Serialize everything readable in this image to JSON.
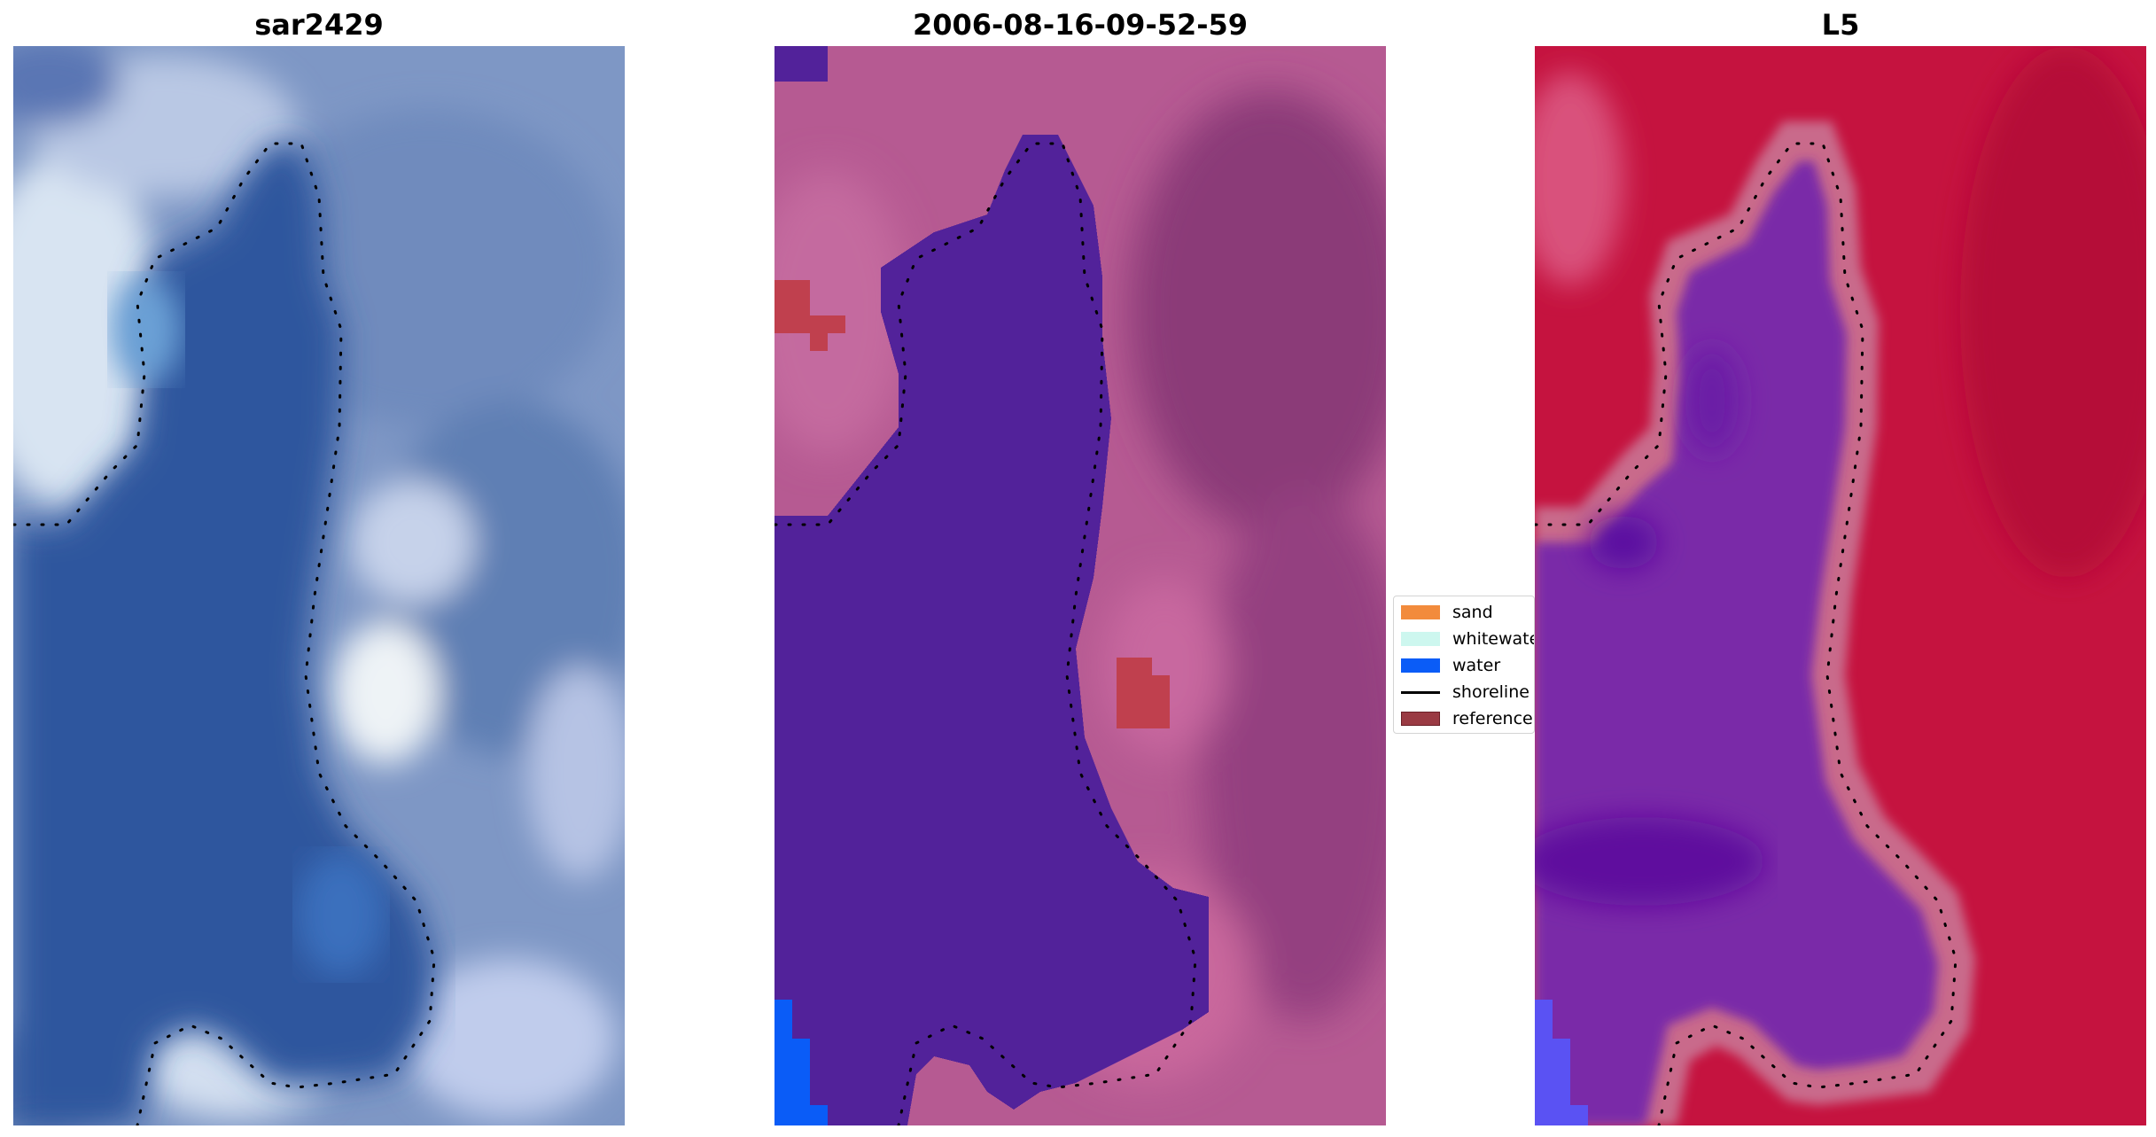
{
  "panels": [
    {
      "title": "sar2429"
    },
    {
      "title": "2006-08-16-09-52-59"
    },
    {
      "title": "L5"
    }
  ],
  "legend": {
    "items": [
      {
        "label": "sand",
        "color": "#f28b3c",
        "kind": "patch"
      },
      {
        "label": "whitewater",
        "color": "#cdf7ef",
        "kind": "patch"
      },
      {
        "label": "water",
        "color": "#0a5cf7",
        "kind": "patch"
      },
      {
        "label": "shoreline",
        "color": "#000000",
        "kind": "line"
      },
      {
        "label": "reference",
        "color": "#9a3a43",
        "kind": "patch"
      }
    ]
  },
  "colors": {
    "rgb_water": "#2e58a0",
    "rgb_land": "#7f98c6",
    "class_water_overlay": "#53229a",
    "class_land": "#b8588f",
    "class_reference": "#c0404e",
    "class_water_pixel": "#0a5cf7",
    "index_land": "#c6123e",
    "index_water": "#7a2ca8",
    "index_edge": "#c9698a",
    "index_water_pixel": "#5a52f3"
  }
}
